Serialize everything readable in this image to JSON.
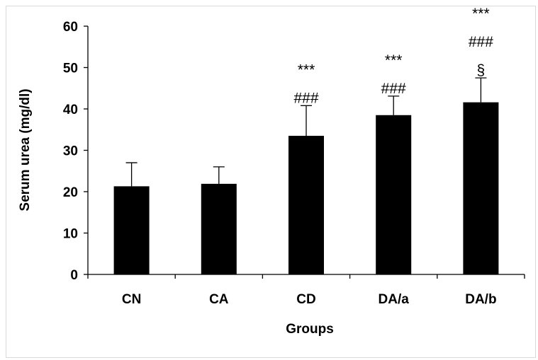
{
  "chart_data": {
    "type": "bar",
    "title": "",
    "xlabel": "Groups",
    "ylabel": "Serum urea (mg/dl)",
    "categories": [
      "CN",
      "CA",
      "CD",
      "DA/a",
      "DA/b"
    ],
    "values": [
      21.3,
      21.9,
      33.5,
      38.5,
      41.6
    ],
    "error": [
      5.7,
      4.1,
      7.3,
      4.6,
      5.9
    ],
    "ylim": [
      0,
      60
    ],
    "yticks": [
      0,
      10,
      20,
      30,
      40,
      50,
      60
    ],
    "bar_color": "#000000",
    "annotations": [
      [],
      [],
      [
        "***",
        "###"
      ],
      [
        "***",
        "###"
      ],
      [
        "***",
        "###",
        "§"
      ]
    ],
    "grid": false,
    "legend": "none"
  }
}
